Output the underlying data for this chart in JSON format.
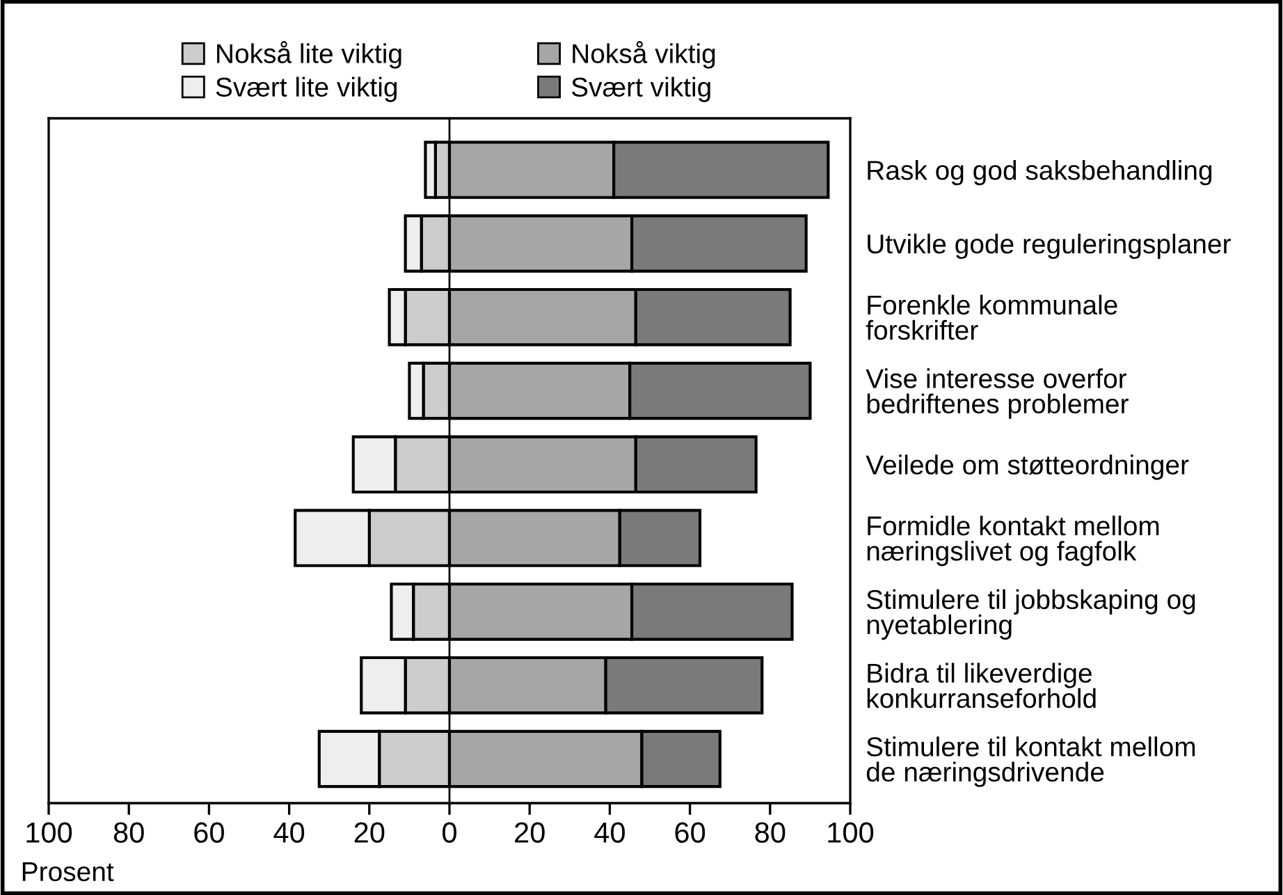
{
  "chart_data": {
    "type": "bar",
    "orientation": "horizontal",
    "stacked": true,
    "xlabel": "Prosent",
    "categories": [
      "Rask og god saksbehandling",
      "Utvikle gode reguleringsplaner",
      "Forenkle kommunale\nforskrifter",
      "Vise interesse overfor\nbedriftenes problemer",
      "Veilede om støtteordninger",
      "Formidle kontakt mellom\nnæringslivet og fagfolk",
      "Stimulere til jobbskaping og\nnyetablering",
      "Bidra til likeverdige\nkonkurranseforhold",
      "Stimulere til kontakt mellom\nde næringsdrivende"
    ],
    "series": [
      {
        "name": "Nokså lite viktig",
        "color": "#cccccc",
        "values": [
          -3.5,
          -7,
          -11,
          -6.5,
          -13.5,
          -20,
          -9,
          -11,
          -17.5
        ]
      },
      {
        "name": "Svært lite viktig",
        "color": "#eeeeee",
        "values": [
          -2.5,
          -4,
          -4,
          -3.5,
          -10.5,
          -18.5,
          -5.5,
          -11,
          -15
        ]
      },
      {
        "name": "Nokså viktig",
        "color": "#a6a6a6",
        "values": [
          41,
          45.5,
          46.5,
          45,
          46.5,
          42.5,
          45.5,
          39,
          48
        ]
      },
      {
        "name": "Svært viktig",
        "color": "#7a7a7a",
        "values": [
          53.5,
          43.5,
          38.5,
          45,
          30,
          20,
          40,
          39,
          19.5
        ]
      }
    ],
    "xlim": [
      -100,
      100
    ],
    "xticks": [
      {
        "value": -100,
        "label": "100"
      },
      {
        "value": -80,
        "label": "80"
      },
      {
        "value": -60,
        "label": "60"
      },
      {
        "value": -40,
        "label": "40"
      },
      {
        "value": -20,
        "label": "20"
      },
      0,
      20,
      40,
      60,
      80,
      100
    ],
    "ref_lines": [
      {
        "axis": "x",
        "value": 0,
        "color": "#000000"
      }
    ],
    "grid": false,
    "legend": "top"
  }
}
